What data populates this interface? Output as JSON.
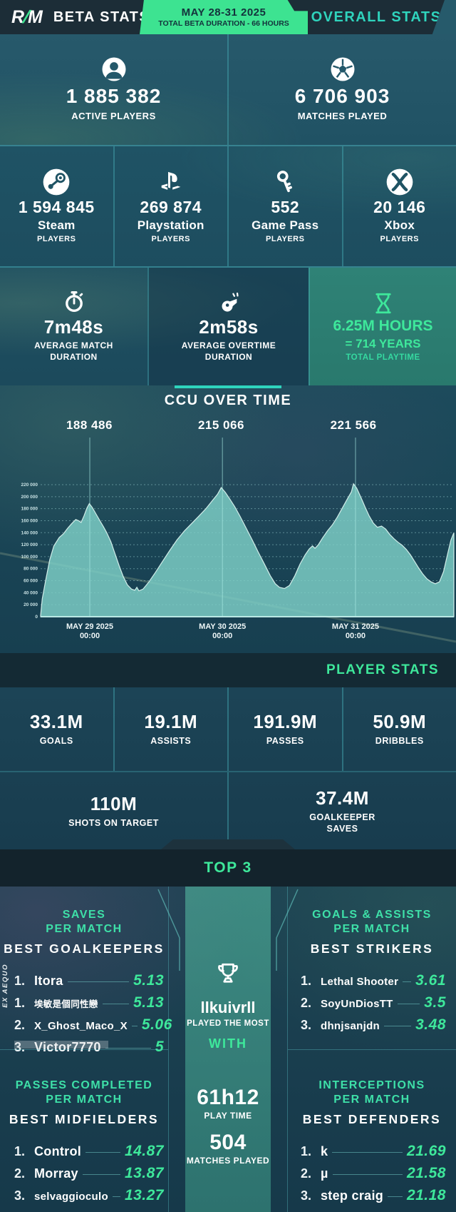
{
  "header": {
    "logo_r": "R",
    "logo_slash": "/",
    "logo_m": "M",
    "title": "BETA STATS",
    "badge": {
      "line1": "MAY 28-31 2025",
      "line2": "TOTAL BETA DURATION - 66 HOURS"
    },
    "right_title": "OVERALL STATS"
  },
  "colors": {
    "accent_green": "#3ee89b",
    "accent_teal": "#2fd4bd",
    "badge_green": "#3de391",
    "chart_fill": "#7fd1c6"
  },
  "overall": {
    "active": {
      "icon": "player-icon",
      "value": "1 885 382",
      "label": "ACTIVE PLAYERS"
    },
    "matches": {
      "icon": "soccer-ball-icon",
      "value": "6 706 903",
      "label": "MATCHES PLAYED"
    }
  },
  "platforms": [
    {
      "icon": "steam-icon",
      "value": "1 594 845",
      "name": "Steam",
      "label": "PLAYERS"
    },
    {
      "icon": "playstation-icon",
      "value": "269 874",
      "name": "Playstation",
      "label": "PLAYERS"
    },
    {
      "icon": "game-pass-key-icon",
      "value": "552",
      "name": "Game Pass",
      "label": "PLAYERS"
    },
    {
      "icon": "xbox-icon",
      "value": "20 146",
      "name": "Xbox",
      "label": "PLAYERS"
    }
  ],
  "durations": {
    "match": {
      "icon": "stopwatch-icon",
      "value": "7m48s",
      "label": "AVERAGE MATCH\nDURATION"
    },
    "overtime": {
      "icon": "whistle-icon",
      "value": "2m58s",
      "label": "AVERAGE OVERTIME\nDURATION"
    },
    "playtime": {
      "icon": "hourglass-icon",
      "value": "6.25M HOURS",
      "value2": "= 714 YEARS",
      "label": "TOTAL PLAYTIME"
    }
  },
  "ccu": {
    "title": "CCU OVER TIME"
  },
  "chart_data": {
    "type": "area",
    "title": "CCU OVER TIME",
    "xlabel": "",
    "ylabel": "",
    "ylim": [
      0,
      230000
    ],
    "grid": true,
    "legend": "none",
    "zero_label": "0",
    "yticks": [
      {
        "v": 220000,
        "label": "220 000"
      },
      {
        "v": 200000,
        "label": "200 000"
      },
      {
        "v": 180000,
        "label": "180 000"
      },
      {
        "v": 160000,
        "label": "160 000"
      },
      {
        "v": 140000,
        "label": "140 000"
      },
      {
        "v": 120000,
        "label": "120 000"
      },
      {
        "v": 100000,
        "label": "100 000"
      },
      {
        "v": 80000,
        "label": "80 000"
      },
      {
        "v": 60000,
        "label": "60 000"
      },
      {
        "v": 40000,
        "label": "40 000"
      },
      {
        "v": 20000,
        "label": "20 000"
      }
    ],
    "x_ticks": [
      {
        "t": 0.119,
        "line1": "MAY 29 2025",
        "line2": "00:00"
      },
      {
        "t": 0.44,
        "line1": "MAY 30 2025",
        "line2": "00:00"
      },
      {
        "t": 0.762,
        "line1": "MAY 31 2025",
        "line2": "00:00"
      }
    ],
    "peaks": [
      {
        "t": 0.118,
        "value": 188486,
        "label": "188 486"
      },
      {
        "t": 0.437,
        "value": 215066,
        "label": "215 066"
      },
      {
        "t": 0.757,
        "value": 221566,
        "label": "221 566"
      }
    ],
    "points": [
      [
        0.0,
        2000
      ],
      [
        0.004,
        30000
      ],
      [
        0.012,
        60000
      ],
      [
        0.022,
        95000
      ],
      [
        0.032,
        118000
      ],
      [
        0.045,
        132000
      ],
      [
        0.055,
        138000
      ],
      [
        0.065,
        147000
      ],
      [
        0.075,
        155000
      ],
      [
        0.085,
        162000
      ],
      [
        0.092,
        160000
      ],
      [
        0.098,
        157000
      ],
      [
        0.105,
        168000
      ],
      [
        0.112,
        181000
      ],
      [
        0.118,
        188486
      ],
      [
        0.125,
        182000
      ],
      [
        0.135,
        170000
      ],
      [
        0.145,
        158000
      ],
      [
        0.152,
        150000
      ],
      [
        0.16,
        140000
      ],
      [
        0.17,
        125000
      ],
      [
        0.18,
        105000
      ],
      [
        0.19,
        85000
      ],
      [
        0.2,
        67000
      ],
      [
        0.21,
        53000
      ],
      [
        0.22,
        46000
      ],
      [
        0.228,
        44000
      ],
      [
        0.233,
        49000
      ],
      [
        0.238,
        43000
      ],
      [
        0.248,
        46000
      ],
      [
        0.262,
        58000
      ],
      [
        0.278,
        74000
      ],
      [
        0.295,
        92000
      ],
      [
        0.312,
        110000
      ],
      [
        0.33,
        128000
      ],
      [
        0.348,
        143000
      ],
      [
        0.365,
        155000
      ],
      [
        0.382,
        167000
      ],
      [
        0.4,
        180000
      ],
      [
        0.415,
        193000
      ],
      [
        0.428,
        204000
      ],
      [
        0.437,
        215066
      ],
      [
        0.447,
        207000
      ],
      [
        0.458,
        196000
      ],
      [
        0.47,
        183000
      ],
      [
        0.483,
        167000
      ],
      [
        0.497,
        148000
      ],
      [
        0.512,
        128000
      ],
      [
        0.527,
        107000
      ],
      [
        0.542,
        87000
      ],
      [
        0.556,
        68000
      ],
      [
        0.568,
        55000
      ],
      [
        0.578,
        49000
      ],
      [
        0.59,
        47000
      ],
      [
        0.602,
        52000
      ],
      [
        0.615,
        68000
      ],
      [
        0.628,
        88000
      ],
      [
        0.64,
        103000
      ],
      [
        0.65,
        113000
      ],
      [
        0.658,
        118000
      ],
      [
        0.664,
        114000
      ],
      [
        0.672,
        120000
      ],
      [
        0.682,
        131000
      ],
      [
        0.694,
        143000
      ],
      [
        0.706,
        153000
      ],
      [
        0.718,
        166000
      ],
      [
        0.73,
        181000
      ],
      [
        0.742,
        196000
      ],
      [
        0.752,
        208000
      ],
      [
        0.757,
        221566
      ],
      [
        0.765,
        214000
      ],
      [
        0.775,
        199000
      ],
      [
        0.785,
        183000
      ],
      [
        0.795,
        168000
      ],
      [
        0.805,
        156000
      ],
      [
        0.815,
        149000
      ],
      [
        0.825,
        151000
      ],
      [
        0.835,
        146000
      ],
      [
        0.845,
        137000
      ],
      [
        0.855,
        130000
      ],
      [
        0.865,
        124000
      ],
      [
        0.875,
        119000
      ],
      [
        0.885,
        112000
      ],
      [
        0.895,
        103000
      ],
      [
        0.905,
        92000
      ],
      [
        0.915,
        81000
      ],
      [
        0.925,
        71000
      ],
      [
        0.935,
        63000
      ],
      [
        0.945,
        58000
      ],
      [
        0.955,
        55000
      ],
      [
        0.965,
        58000
      ],
      [
        0.975,
        75000
      ],
      [
        0.985,
        105000
      ],
      [
        0.993,
        128000
      ],
      [
        1.0,
        140000
      ]
    ]
  },
  "player_stats": {
    "header": "PLAYER STATS",
    "row1": [
      {
        "value": "33.1M",
        "label": "GOALS"
      },
      {
        "value": "19.1M",
        "label": "ASSISTS"
      },
      {
        "value": "191.9M",
        "label": "PASSES"
      },
      {
        "value": "50.9M",
        "label": "DRIBBLES"
      }
    ],
    "row2": [
      {
        "value": "110M",
        "label": "SHOTS ON TARGET"
      },
      {
        "value": "37.4M",
        "label": "GOALKEEPER\nSAVES"
      }
    ]
  },
  "top3": {
    "header": "TOP 3",
    "goalkeepers": {
      "stat": "SAVES\nPER MATCH",
      "title": "BEST GOALKEEPERS",
      "ex_aequo": "EX AEQUO",
      "entries": [
        {
          "rank": "1.",
          "name": "Itora",
          "value": "5.13"
        },
        {
          "rank": "1.",
          "name": "埃敏是個同性戀",
          "value": "5.13"
        },
        {
          "rank": "2.",
          "name": "X_Ghost_Maco_X",
          "value": "5.06"
        },
        {
          "rank": "3.",
          "name": "Victor7770",
          "value": "5"
        }
      ]
    },
    "strikers": {
      "stat": "GOALS & ASSISTS\nPER MATCH",
      "title": "BEST STRIKERS",
      "entries": [
        {
          "rank": "1.",
          "name": "Lethal Shooter",
          "value": "3.61"
        },
        {
          "rank": "2.",
          "name": "SoyUnDiosTT",
          "value": "3.5"
        },
        {
          "rank": "3.",
          "name": "dhnjsanjdn",
          "value": "3.48"
        }
      ]
    },
    "midfielders": {
      "stat": "PASSES COMPLETED\nPER MATCH",
      "title": "BEST MIDFIELDERS",
      "entries": [
        {
          "rank": "1.",
          "name": "Control",
          "value": "14.87"
        },
        {
          "rank": "2.",
          "name": "Morray",
          "value": "13.87"
        },
        {
          "rank": "3.",
          "name": "selvaggioculo",
          "value": "13.27"
        }
      ]
    },
    "defenders": {
      "stat": "INTERCEPTIONS\nPER MATCH",
      "title": "BEST DEFENDERS",
      "entries": [
        {
          "rank": "1.",
          "name": "k",
          "value": "21.69"
        },
        {
          "rank": "2.",
          "name": "µ",
          "value": "21.58"
        },
        {
          "rank": "3.",
          "name": "step craig",
          "value": "21.18"
        }
      ]
    },
    "mvp": {
      "icon": "trophy-icon",
      "name": "llkuivrll",
      "subtitle": "PLAYED THE MOST",
      "with_label": "WITH",
      "playtime": "61h12",
      "playtime_label": "PLAY TIME",
      "matches": "504",
      "matches_label": "MATCHES PLAYED"
    }
  }
}
